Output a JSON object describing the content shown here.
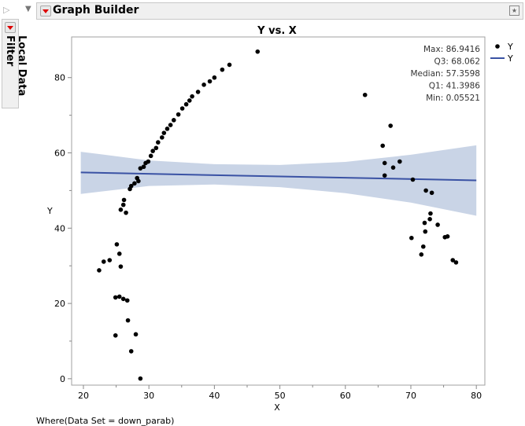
{
  "header": {
    "title": "Graph Builder"
  },
  "filter_tab": {
    "label": "Local Data Filter"
  },
  "where_text": "Where(Data Set = down_parab)",
  "colors": {
    "points": "#000000",
    "fit_line": "#3a52a4",
    "band": "#c9d4e6"
  },
  "icons": {
    "menu": "red-triangle-menu-icon",
    "pin": "pin-icon"
  },
  "chart_data": {
    "type": "scatter",
    "title": "Y vs. X",
    "xlabel": "X",
    "ylabel": "Y",
    "xlim": [
      18.2,
      81.3
    ],
    "ylim": [
      -1.7,
      90.8
    ],
    "xticks": [
      20,
      30,
      40,
      50,
      60,
      70,
      80
    ],
    "yticks": [
      0,
      20,
      40,
      60,
      80
    ],
    "grid": false,
    "legend": {
      "placement": "right",
      "entries": [
        {
          "label": "Y",
          "marker": "point"
        },
        {
          "label": "Y",
          "marker": "line"
        }
      ]
    },
    "summary": [
      "Max: 86.9416",
      "Q3: 68.062",
      "Median: 57.3598",
      "Q1: 41.3986",
      "Min: 0.05521"
    ],
    "points": [
      [
        22.4,
        28.8
      ],
      [
        23.1,
        31.1
      ],
      [
        24.0,
        31.5
      ],
      [
        25.1,
        35.7
      ],
      [
        25.5,
        33.2
      ],
      [
        25.7,
        29.8
      ],
      [
        24.9,
        21.6
      ],
      [
        25.5,
        21.8
      ],
      [
        26.1,
        21.2
      ],
      [
        26.7,
        20.8
      ],
      [
        24.9,
        11.5
      ],
      [
        26.8,
        15.5
      ],
      [
        27.3,
        7.3
      ],
      [
        28.0,
        11.8
      ],
      [
        28.7,
        0.05
      ],
      [
        25.7,
        44.9
      ],
      [
        26.1,
        46.2
      ],
      [
        26.2,
        47.5
      ],
      [
        26.5,
        44.1
      ],
      [
        27.1,
        50.4
      ],
      [
        27.3,
        51.2
      ],
      [
        27.8,
        51.9
      ],
      [
        28.4,
        52.5
      ],
      [
        28.2,
        53.3
      ],
      [
        28.7,
        55.9
      ],
      [
        29.2,
        56.3
      ],
      [
        29.5,
        57.3
      ],
      [
        29.9,
        57.7
      ],
      [
        30.3,
        59.2
      ],
      [
        30.6,
        60.5
      ],
      [
        31.1,
        61.3
      ],
      [
        31.4,
        62.8
      ],
      [
        32.0,
        64.1
      ],
      [
        32.3,
        65.3
      ],
      [
        32.8,
        66.4
      ],
      [
        33.3,
        67.4
      ],
      [
        33.8,
        68.7
      ],
      [
        34.5,
        70.2
      ],
      [
        35.1,
        71.8
      ],
      [
        35.7,
        72.9
      ],
      [
        36.2,
        73.9
      ],
      [
        36.6,
        75.0
      ],
      [
        37.5,
        76.2
      ],
      [
        38.4,
        78.1
      ],
      [
        39.3,
        79.0
      ],
      [
        40.0,
        80.0
      ],
      [
        41.2,
        82.1
      ],
      [
        42.3,
        83.4
      ],
      [
        46.6,
        86.9
      ],
      [
        63.0,
        75.4
      ],
      [
        65.7,
        61.9
      ],
      [
        66.0,
        57.3
      ],
      [
        66.0,
        54.0
      ],
      [
        66.9,
        67.2
      ],
      [
        67.3,
        56.1
      ],
      [
        68.3,
        57.7
      ],
      [
        70.3,
        52.9
      ],
      [
        70.1,
        37.4
      ],
      [
        71.6,
        33.0
      ],
      [
        71.9,
        35.1
      ],
      [
        72.1,
        41.4
      ],
      [
        72.2,
        39.1
      ],
      [
        72.3,
        50.0
      ],
      [
        72.9,
        42.4
      ],
      [
        73.0,
        43.9
      ],
      [
        73.2,
        49.4
      ],
      [
        74.1,
        40.9
      ],
      [
        75.2,
        37.6
      ],
      [
        75.6,
        37.8
      ],
      [
        76.4,
        31.5
      ],
      [
        76.9,
        30.9
      ]
    ],
    "fit": {
      "x": [
        19.6,
        80
      ],
      "y": [
        54.8,
        52.7
      ]
    },
    "band": {
      "x": [
        19.6,
        30,
        40,
        50,
        60,
        70,
        80
      ],
      "upper": [
        60.3,
        58.0,
        57.0,
        56.8,
        57.6,
        59.5,
        62.0
      ],
      "lower": [
        49.1,
        51.2,
        51.6,
        50.9,
        49.3,
        46.8,
        43.3
      ]
    }
  }
}
